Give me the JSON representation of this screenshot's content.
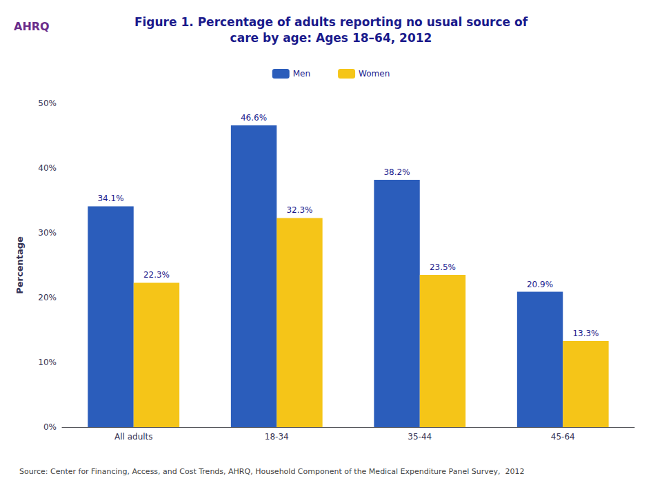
{
  "chart_data": {
    "type": "bar",
    "title": "Figure 1. Percentage of adults reporting no usual source of",
    "subtitle": "care by age: Ages 18–64, 2012",
    "ylabel": "Percentage",
    "categories": [
      "All adults",
      "18-34",
      "35-44",
      "45-64"
    ],
    "series": [
      {
        "name": "Men",
        "color": "#2B5DBB",
        "values": [
          34.1,
          46.6,
          38.2,
          20.9
        ],
        "value_labels": [
          "34.1%",
          "46.6%",
          "38.2%",
          "20.9%"
        ]
      },
      {
        "name": "Women",
        "color": "#F5C518",
        "values": [
          22.3,
          32.3,
          23.5,
          13.3
        ],
        "value_labels": [
          "22.3%",
          "32.3%",
          "23.5%",
          "13.3%"
        ]
      }
    ],
    "ylim": [
      0,
      50
    ],
    "yticks": [
      {
        "value": 0,
        "label": "0%"
      },
      {
        "value": 10,
        "label": "10%"
      },
      {
        "value": 20,
        "label": "20%"
      },
      {
        "value": 30,
        "label": "30%"
      },
      {
        "value": 40,
        "label": "40%"
      },
      {
        "value": 50,
        "label": "50%"
      }
    ],
    "data_labels": true,
    "grid": false,
    "legend": "top",
    "annotations": [
      "AHRQ",
      "Source: Center for Financing, Access, and Cost Trends, AHRQ, Household Component of the Medical Expenditure Panel Survey,  2012"
    ]
  }
}
